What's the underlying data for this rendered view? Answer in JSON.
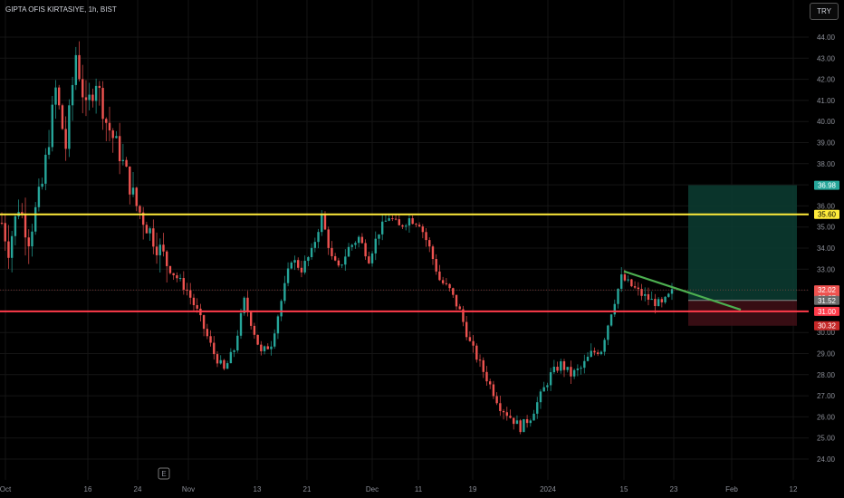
{
  "header": {
    "title": "GIPTA OFIS KIRTASIYE, 1h, BIST",
    "currency": "TRY"
  },
  "colors": {
    "up": "#26a69a",
    "down": "#ef5350",
    "wick": "#9e9e9e",
    "yellow_line": "#ffeb3b",
    "red_line": "#ff3b4a",
    "green_trend": "#4caf50",
    "profit_zone": "#0b3a30",
    "loss_zone": "#3a0e14"
  },
  "chart_data": {
    "type": "candlestick",
    "ylim": [
      23.5,
      45.2
    ],
    "y_ticks": [
      "44.00",
      "43.00",
      "42.00",
      "41.00",
      "40.00",
      "39.00",
      "38.00",
      "37.00",
      "36.00",
      "35.00",
      "34.00",
      "33.00",
      "32.00",
      "31.00",
      "30.00",
      "29.00",
      "28.00",
      "27.00",
      "26.00",
      "25.00",
      "24.00"
    ],
    "x_ticks": [
      "Oct",
      "16",
      "24",
      "Nov",
      "13",
      "21",
      "Dec",
      "11",
      "19",
      "2024",
      "15",
      "23",
      "Feb",
      "12"
    ],
    "price_path": [
      [
        0,
        35.2
      ],
      [
        2,
        34.0
      ],
      [
        5,
        36.0
      ],
      [
        8,
        34.5
      ],
      [
        12,
        37.0
      ],
      [
        16,
        41.5
      ],
      [
        19,
        38.8
      ],
      [
        22,
        43.2
      ],
      [
        25,
        40.5
      ],
      [
        28,
        42.0
      ],
      [
        31,
        40.0
      ],
      [
        35,
        38.5
      ],
      [
        40,
        36.0
      ],
      [
        45,
        34.5
      ],
      [
        50,
        33.0
      ],
      [
        55,
        32.0
      ],
      [
        58,
        31.0
      ],
      [
        60,
        30.2
      ],
      [
        63,
        29.0
      ],
      [
        66,
        28.2
      ],
      [
        69,
        29.2
      ],
      [
        72,
        31.5
      ],
      [
        74,
        30.5
      ],
      [
        77,
        29.0
      ],
      [
        80,
        29.5
      ],
      [
        83,
        31.5
      ],
      [
        86,
        33.5
      ],
      [
        89,
        33.0
      ],
      [
        92,
        33.8
      ],
      [
        95,
        35.5
      ],
      [
        98,
        33.5
      ],
      [
        100,
        33.0
      ],
      [
        103,
        34.0
      ],
      [
        106,
        34.5
      ],
      [
        109,
        33.5
      ],
      [
        112,
        34.8
      ],
      [
        115,
        35.5
      ],
      [
        118,
        35.0
      ],
      [
        121,
        35.4
      ],
      [
        124,
        35.2
      ],
      [
        127,
        34.0
      ],
      [
        130,
        32.5
      ],
      [
        133,
        32.0
      ],
      [
        136,
        31.0
      ],
      [
        139,
        29.5
      ],
      [
        142,
        28.5
      ],
      [
        145,
        27.5
      ],
      [
        148,
        26.5
      ],
      [
        151,
        26.0
      ],
      [
        154,
        25.5
      ],
      [
        157,
        26.0
      ],
      [
        160,
        27.0
      ],
      [
        163,
        28.0
      ],
      [
        166,
        28.5
      ],
      [
        169,
        28.0
      ],
      [
        172,
        28.3
      ],
      [
        175,
        29.0
      ],
      [
        178,
        29.2
      ],
      [
        181,
        31.0
      ],
      [
        184,
        32.6
      ],
      [
        187,
        32.2
      ],
      [
        190,
        31.8
      ],
      [
        193,
        31.5
      ],
      [
        196,
        31.3
      ],
      [
        199,
        31.9
      ]
    ],
    "horizontal_lines": [
      {
        "price": 35.6,
        "color_key": "yellow_line"
      },
      {
        "price": 31.0,
        "color_key": "red_line"
      }
    ],
    "trend_line": {
      "from": {
        "date": "2024-01-15",
        "price": 32.9
      },
      "to": {
        "date": "2024-02-01",
        "price": 31.08
      }
    },
    "position": {
      "entry": 31.52,
      "target": 36.98,
      "stop": 30.32
    },
    "price_labels": [
      {
        "text": "36.98",
        "price": 36.98,
        "color": "#26a69a"
      },
      {
        "text": "35.60",
        "price": 35.6,
        "color": "#ffeb3b",
        "dark_text": true
      },
      {
        "text": "32.02",
        "sub": "22:27",
        "price": 32.02,
        "color": "#ef5350"
      },
      {
        "text": "31.52",
        "price": 31.52,
        "color": "#6b6b6b"
      },
      {
        "text": "31.00",
        "price": 31.0,
        "color": "#ff3b4a"
      },
      {
        "text": "30.32",
        "price": 30.32,
        "color": "#c62828"
      }
    ],
    "marker": "E"
  }
}
